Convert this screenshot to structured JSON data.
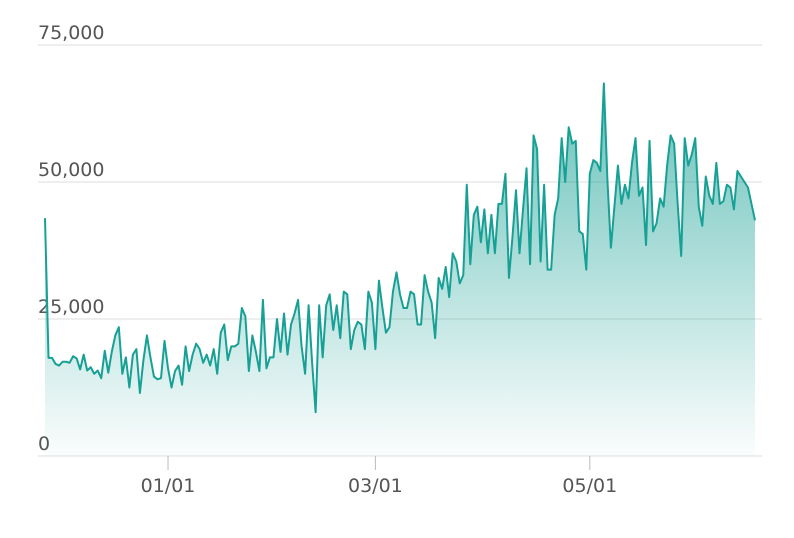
{
  "chart_data": {
    "type": "area",
    "color": "#17a095",
    "x": [
      "11/27",
      "11/28",
      "11/29",
      "11/30",
      "12/01",
      "12/02",
      "12/03",
      "12/04",
      "12/05",
      "12/06",
      "12/07",
      "12/08",
      "12/09",
      "12/10",
      "12/11",
      "12/12",
      "12/13",
      "12/14",
      "12/15",
      "12/16",
      "12/17",
      "12/18",
      "12/19",
      "12/20",
      "12/21",
      "12/22",
      "12/23",
      "12/24",
      "12/25",
      "12/26",
      "12/27",
      "12/28",
      "12/29",
      "12/30",
      "12/31",
      "01/01",
      "01/02",
      "01/03",
      "01/04",
      "01/05",
      "01/06",
      "01/07",
      "01/08",
      "01/09",
      "01/10",
      "01/11",
      "01/12",
      "01/13",
      "01/14",
      "01/15",
      "01/16",
      "01/17",
      "01/18",
      "01/19",
      "01/20",
      "01/21",
      "01/22",
      "01/23",
      "01/24",
      "01/25",
      "01/26",
      "01/27",
      "01/28",
      "01/29",
      "01/30",
      "01/31",
      "02/01",
      "02/02",
      "02/03",
      "02/04",
      "02/05",
      "02/06",
      "02/07",
      "02/08",
      "02/09",
      "02/10",
      "02/11",
      "02/12",
      "02/13",
      "02/14",
      "02/15",
      "02/16",
      "02/17",
      "02/18",
      "02/19",
      "02/20",
      "02/21",
      "02/22",
      "02/23",
      "02/24",
      "02/25",
      "02/26",
      "02/27",
      "02/28",
      "03/01",
      "03/02",
      "03/03",
      "03/04",
      "03/05",
      "03/06",
      "03/07",
      "03/08",
      "03/09",
      "03/10",
      "03/11",
      "03/12",
      "03/13",
      "03/14",
      "03/15",
      "03/16",
      "03/17",
      "03/18",
      "03/19",
      "03/20",
      "03/21",
      "03/22",
      "03/23",
      "03/24",
      "03/25",
      "03/26",
      "03/27",
      "03/28",
      "03/29",
      "03/30",
      "03/31",
      "04/01",
      "04/02",
      "04/03",
      "04/04",
      "04/05",
      "04/06",
      "04/07",
      "04/08",
      "04/09",
      "04/10",
      "04/11",
      "04/12",
      "04/13",
      "04/14",
      "04/15",
      "04/16",
      "04/17",
      "04/18",
      "04/19",
      "04/20",
      "04/21",
      "04/22",
      "04/23",
      "04/24",
      "04/25",
      "04/26",
      "04/27",
      "04/28",
      "04/29",
      "04/30",
      "05/01",
      "05/02",
      "05/03",
      "05/04",
      "05/05",
      "05/06",
      "05/07",
      "05/08",
      "05/09",
      "05/10",
      "05/11",
      "05/12",
      "05/13",
      "05/14",
      "05/15",
      "05/16",
      "05/17",
      "05/18",
      "05/19",
      "05/20",
      "05/21",
      "05/22",
      "05/23",
      "05/24",
      "05/25",
      "05/26",
      "05/27",
      "05/28",
      "05/29",
      "05/30",
      "05/31",
      "06/01",
      "06/02",
      "06/03",
      "06/04",
      "06/05",
      "06/06",
      "06/07",
      "06/08",
      "06/09",
      "06/10",
      "06/11",
      "06/12",
      "06/13",
      "06/14",
      "06/15",
      "06/16",
      "06/17"
    ],
    "values": [
      43400,
      17900,
      17900,
      16800,
      16500,
      17200,
      17200,
      17000,
      18200,
      17800,
      15800,
      18500,
      15600,
      16200,
      15000,
      15600,
      14200,
      19200,
      15200,
      19000,
      22000,
      23500,
      15000,
      18000,
      12500,
      18500,
      19500,
      11500,
      17500,
      22000,
      18000,
      14500,
      14000,
      14200,
      21000,
      16000,
      12500,
      15500,
      16500,
      13000,
      20000,
      15500,
      18500,
      20500,
      19500,
      17000,
      18500,
      16500,
      19500,
      15000,
      22500,
      24000,
      17500,
      20000,
      20000,
      20500,
      27000,
      25500,
      15500,
      22000,
      19000,
      15500,
      28500,
      16000,
      18000,
      18000,
      25000,
      19000,
      26000,
      18500,
      24000,
      26000,
      28500,
      20000,
      15000,
      27500,
      17000,
      8000,
      27500,
      18000,
      27500,
      29500,
      23000,
      27500,
      21500,
      30000,
      29500,
      19500,
      23000,
      24500,
      24000,
      19500,
      30000,
      28000,
      19500,
      32000,
      27000,
      22500,
      23500,
      30000,
      33500,
      29500,
      27000,
      27000,
      30000,
      29500,
      24000,
      24000,
      33000,
      30000,
      28000,
      21500,
      32500,
      30500,
      34500,
      29000,
      37000,
      35500,
      31500,
      33000,
      49500,
      35000,
      44000,
      45500,
      39000,
      45000,
      37000,
      44000,
      37000,
      46000,
      46000,
      51500,
      32500,
      40000,
      48500,
      37000,
      45000,
      52500,
      35000,
      58500,
      56000,
      35500,
      49500,
      34000,
      34000,
      44000,
      47000,
      58000,
      50000,
      60000,
      57000,
      57500,
      41000,
      40500,
      34000,
      51500,
      54000,
      53500,
      52000,
      68000,
      50500,
      38000,
      45500,
      53000,
      46000,
      49500,
      47000,
      53500,
      58000,
      47500,
      49000,
      38500,
      57500,
      41000,
      42500,
      47000,
      45500,
      53000,
      58500,
      57000,
      46000,
      36500,
      58000,
      53000,
      55000,
      58000,
      45500,
      42000,
      51000,
      47500,
      46000,
      53500,
      46000,
      46500,
      49500,
      49000,
      45000,
      52000,
      51000,
      50000,
      49000,
      46000,
      43000
    ],
    "xticks": [
      "01/01",
      "03/01",
      "05/01"
    ],
    "ylim": [
      0,
      75000
    ],
    "yticks": [
      0,
      {
        "value": 25000,
        "label": "25,000"
      },
      {
        "value": 50000,
        "label": "50,000"
      },
      {
        "value": 75000,
        "label": "75,000"
      }
    ],
    "grid": true
  }
}
